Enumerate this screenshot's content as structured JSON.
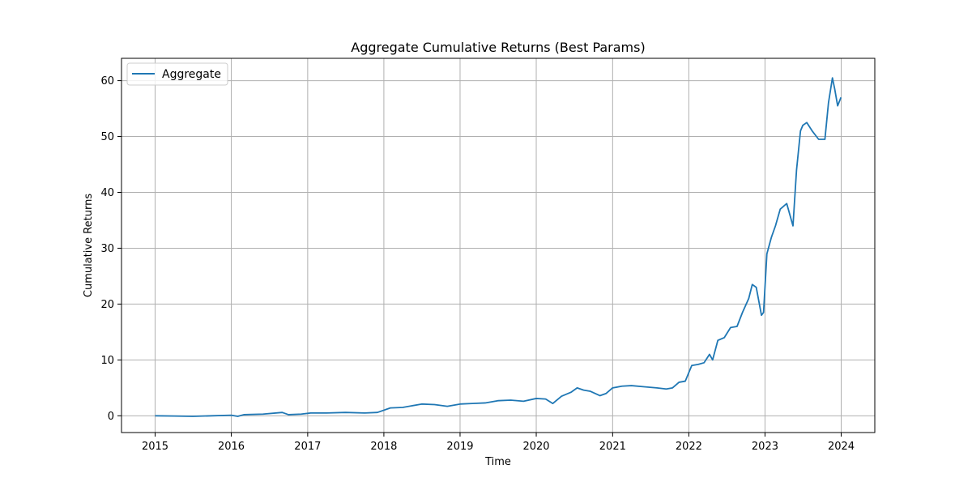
{
  "chart_data": {
    "type": "line",
    "title": "Aggregate Cumulative Returns (Best Params)",
    "xlabel": "Time",
    "ylabel": "Cumulative Returns",
    "xlim": [
      "2014-07-24",
      "2024-06-10"
    ],
    "ylim": [
      -3.0,
      64.0
    ],
    "x_ticks": [
      "2015",
      "2016",
      "2017",
      "2018",
      "2019",
      "2020",
      "2021",
      "2022",
      "2023",
      "2024"
    ],
    "y_ticks": [
      0,
      10,
      20,
      30,
      40,
      50,
      60
    ],
    "grid": true,
    "legend_position": "top-left",
    "line_color": "#1f77b4",
    "series": [
      {
        "name": "Aggregate",
        "x": [
          "2015-01-01",
          "2015-04-01",
          "2015-07-01",
          "2015-10-01",
          "2016-01-01",
          "2016-02-01",
          "2016-03-01",
          "2016-06-01",
          "2016-09-01",
          "2016-10-01",
          "2016-12-01",
          "2017-01-15",
          "2017-04-01",
          "2017-07-01",
          "2017-10-01",
          "2017-12-01",
          "2018-02-01",
          "2018-04-01",
          "2018-07-01",
          "2018-09-01",
          "2018-11-01",
          "2019-01-01",
          "2019-03-01",
          "2019-05-01",
          "2019-07-01",
          "2019-09-01",
          "2019-11-01",
          "2020-01-01",
          "2020-02-15",
          "2020-03-20",
          "2020-05-01",
          "2020-06-15",
          "2020-07-15",
          "2020-08-15",
          "2020-09-15",
          "2020-11-01",
          "2020-12-01",
          "2021-01-01",
          "2021-02-15",
          "2021-04-01",
          "2021-06-01",
          "2021-08-01",
          "2021-09-15",
          "2021-10-15",
          "2021-11-15",
          "2021-12-15",
          "2022-01-15",
          "2022-02-15",
          "2022-03-15",
          "2022-04-10",
          "2022-04-25",
          "2022-05-20",
          "2022-06-20",
          "2022-07-20",
          "2022-08-20",
          "2022-09-15",
          "2022-10-15",
          "2022-11-01",
          "2022-11-20",
          "2022-12-15",
          "2022-12-25",
          "2023-01-10",
          "2023-02-01",
          "2023-02-20",
          "2023-03-15",
          "2023-04-15",
          "2023-05-15",
          "2023-06-01",
          "2023-06-20",
          "2023-07-01",
          "2023-07-20",
          "2023-08-15",
          "2023-09-15",
          "2023-10-15",
          "2023-11-01",
          "2023-11-20",
          "2023-12-01",
          "2023-12-15",
          "2023-12-31"
        ],
        "values": [
          0.0,
          -0.05,
          -0.1,
          0.0,
          0.1,
          -0.1,
          0.2,
          0.3,
          0.6,
          0.2,
          0.3,
          0.5,
          0.5,
          0.6,
          0.5,
          0.6,
          1.4,
          1.5,
          2.1,
          2.0,
          1.7,
          2.1,
          2.2,
          2.3,
          2.7,
          2.8,
          2.6,
          3.1,
          3.0,
          2.2,
          3.5,
          4.2,
          5.0,
          4.6,
          4.4,
          3.6,
          4.0,
          5.0,
          5.3,
          5.4,
          5.2,
          5.0,
          4.8,
          5.0,
          6.0,
          6.2,
          9.0,
          9.2,
          9.5,
          11.0,
          10.0,
          13.5,
          14.0,
          15.8,
          16.0,
          18.5,
          21.0,
          23.5,
          23.0,
          18.0,
          18.5,
          29.0,
          32.0,
          34.0,
          37.0,
          38.0,
          34.0,
          44.0,
          51.0,
          52.0,
          52.5,
          51.0,
          49.5,
          49.5,
          56.0,
          60.5,
          58.5,
          55.5,
          57.0
        ]
      }
    ]
  }
}
